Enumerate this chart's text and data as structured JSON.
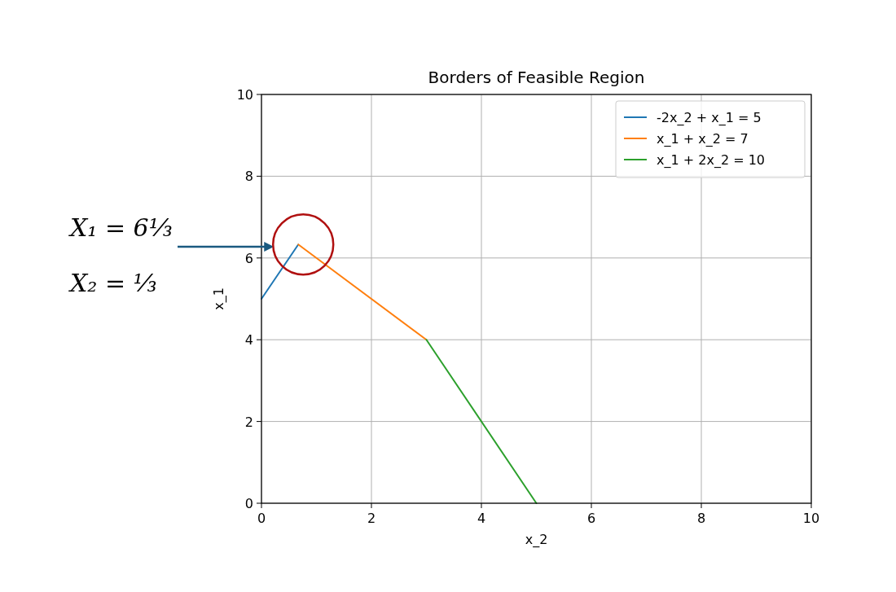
{
  "chart_data": {
    "type": "line",
    "title": "Borders of Feasible Region",
    "xlabel": "x_2",
    "ylabel": "x_1",
    "xlim": [
      0,
      10
    ],
    "ylim": [
      0,
      10
    ],
    "xticks": [
      0,
      2,
      4,
      6,
      8,
      10
    ],
    "yticks": [
      0,
      2,
      4,
      6,
      8,
      10
    ],
    "grid": true,
    "legend": "top right",
    "series": [
      {
        "name": "-2x_2 + x_1 = 5",
        "color": "#1f77b4",
        "x": [
          0,
          0.67
        ],
        "values": [
          5,
          6.33
        ]
      },
      {
        "name": "x_1 + x_2 = 7",
        "color": "#ff7f0e",
        "x": [
          0.67,
          3
        ],
        "values": [
          6.33,
          4
        ]
      },
      {
        "name": "x_1 + 2x_2 = 10",
        "color": "#2ca02c",
        "x": [
          3,
          5
        ],
        "values": [
          4,
          0
        ]
      }
    ],
    "annotations": [
      "X₁ = 6⅓",
      "X₂ = ⅓"
    ]
  }
}
